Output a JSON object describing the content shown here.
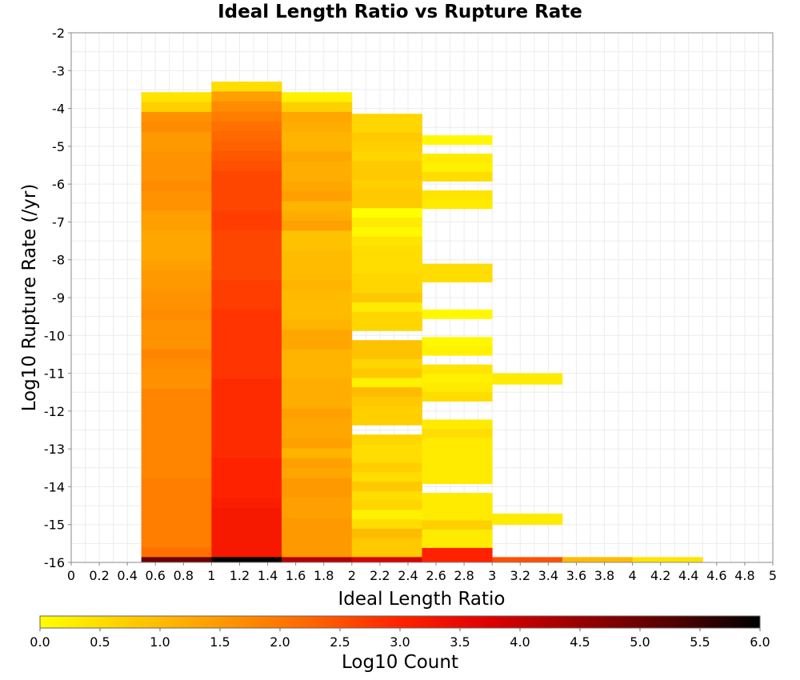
{
  "chart_data": {
    "type": "heatmap",
    "title": "Ideal Length Ratio vs Rupture Rate",
    "xlabel": "Ideal Length Ratio",
    "ylabel": "Log10 Rupture Rate (/yr)",
    "xlim": [
      0,
      5
    ],
    "ylim": [
      -16,
      -2
    ],
    "x_ticks": [
      "0",
      "0.2",
      "0.4",
      "0.6",
      "0.8",
      "1",
      "1.2",
      "1.4",
      "1.6",
      "1.8",
      "2",
      "2.2",
      "2.4",
      "2.6",
      "2.8",
      "3",
      "3.2",
      "3.4",
      "3.6",
      "3.8",
      "4",
      "4.2",
      "4.4",
      "4.6",
      "4.8",
      "5"
    ],
    "y_ticks": [
      "-2",
      "-3",
      "-4",
      "-5",
      "-6",
      "-7",
      "-8",
      "-9",
      "-10",
      "-11",
      "-12",
      "-13",
      "-14",
      "-15",
      "-16"
    ],
    "x_bin_width": 0.5,
    "y_bin_width": 0.2857,
    "grid": true,
    "colorbar": {
      "label": "Log10 Count",
      "min": 0,
      "max": 6,
      "ticks": [
        "0.0",
        "0.5",
        "1.0",
        "1.5",
        "2.0",
        "2.5",
        "3.0",
        "3.5",
        "4.0",
        "4.5",
        "5.0",
        "5.5",
        "6.0"
      ],
      "colormap": [
        "#ffff00",
        "#ffcc00",
        "#ff9900",
        "#ff6600",
        "#ff2200",
        "#dd0000",
        "#990000",
        "#550000",
        "#000000"
      ]
    },
    "columns": [
      {
        "x_center": 0.75,
        "top": -3.57,
        "values": [
          0.4,
          0.7,
          1.6,
          1.7,
          1.5,
          1.5,
          1.6,
          1.6,
          1.6,
          1.7,
          1.6,
          1.6,
          1.4,
          1.4,
          1.3,
          1.3,
          1.3,
          1.4,
          1.5,
          1.5,
          1.6,
          1.6,
          1.7,
          1.6,
          1.6,
          1.6,
          1.8,
          1.7,
          1.6,
          1.6,
          1.8,
          1.8,
          1.8,
          1.8,
          1.8,
          1.8,
          1.8,
          1.8,
          1.8,
          1.9,
          1.9,
          1.9,
          1.9,
          1.9,
          1.9,
          1.9,
          2.1
        ]
      },
      {
        "x_center": 1.25,
        "top": -3.29,
        "values": [
          0.5,
          1.4,
          1.7,
          1.9,
          2.1,
          2.2,
          2.3,
          2.4,
          2.5,
          2.6,
          2.6,
          2.6,
          2.6,
          2.7,
          2.7,
          2.6,
          2.6,
          2.6,
          2.6,
          2.6,
          2.7,
          2.7,
          2.7,
          2.8,
          2.8,
          2.8,
          2.8,
          2.8,
          2.8,
          2.8,
          2.9,
          2.9,
          2.9,
          2.9,
          2.9,
          2.9,
          2.9,
          2.9,
          3.0,
          3.0,
          3.0,
          3.0,
          3.1,
          3.2,
          3.2,
          3.2,
          3.2,
          3.2
        ]
      },
      {
        "x_center": 1.75,
        "top": -3.57,
        "values": [
          0.2,
          0.7,
          1.3,
          1.2,
          1.1,
          1.1,
          1.3,
          1.2,
          1.2,
          1.3,
          1.4,
          1.1,
          1.2,
          1.4,
          0.9,
          0.9,
          1.0,
          1.0,
          1.0,
          1.1,
          1.0,
          1.0,
          1.0,
          1.1,
          1.3,
          1.3,
          1.1,
          1.1,
          1.1,
          1.2,
          1.2,
          1.2,
          1.4,
          1.3,
          1.3,
          1.4,
          1.1,
          1.4,
          1.3,
          1.5,
          1.5,
          1.4,
          1.4,
          1.5,
          1.5,
          1.5,
          1.5
        ]
      },
      {
        "x_center": 2.25,
        "top": -4.14,
        "values": [
          0.6,
          0.6,
          0.8,
          0.7,
          0.6,
          0.8,
          0.8,
          0.7,
          0.8,
          0.8,
          0.0,
          0.3,
          0.1,
          0.4,
          0.5,
          0.5,
          0.5,
          0.6,
          0.6,
          0.8,
          0.3,
          0.6,
          0.6,
          null,
          0.9,
          0.9,
          0.6,
          0.8,
          0.2,
          1.0,
          0.8,
          0.7,
          0.7,
          null,
          0.6,
          0.5,
          0.5,
          0.7,
          0.5,
          0.8,
          0.5,
          0.6,
          0.2,
          0.5,
          1.0,
          0.8,
          0.8
        ]
      },
      {
        "x_center": 2.75,
        "top": -4.71,
        "values": [
          0.1,
          null,
          0.3,
          0.2,
          0.5,
          null,
          0.4,
          0.3,
          null,
          null,
          null,
          null,
          null,
          null,
          0.5,
          0.5,
          null,
          null,
          null,
          0.1,
          null,
          null,
          0.1,
          0.2,
          null,
          0.4,
          0.2,
          0.3,
          0.5,
          null,
          null,
          0.3,
          0.5,
          0.3,
          0.3,
          0.3,
          0.3,
          0.3,
          null,
          0.3,
          0.3,
          0.3,
          0.7,
          0.3,
          0.3,
          3.0
        ]
      },
      {
        "x_center": 3.25,
        "cells": [
          {
            "y": [
              -11.29,
              -11.0
            ],
            "value": 0.3
          },
          {
            "y": [
              -15.0,
              -14.71
            ],
            "value": 0.3
          },
          {
            "y": [
              -16.0,
              -15.86
            ],
            "value": 2.5
          }
        ]
      },
      {
        "x_center": 3.75,
        "cells": [
          {
            "y": [
              -16.0,
              -15.86
            ],
            "value": 1.0
          }
        ]
      },
      {
        "x_center": 4.25,
        "cells": [
          {
            "y": [
              -16.0,
              -15.86
            ],
            "value": 0.4
          }
        ]
      }
    ],
    "bottom_row": {
      "y": [
        -16.0,
        -15.86
      ],
      "values": [
        {
          "x_center": 0.75,
          "value": 5.0
        },
        {
          "x_center": 1.25,
          "value": 6.0
        },
        {
          "x_center": 1.75,
          "value": 4.2
        },
        {
          "x_center": 2.25,
          "value": 3.8
        },
        {
          "x_center": 2.75,
          "value": 3.0
        }
      ]
    }
  }
}
